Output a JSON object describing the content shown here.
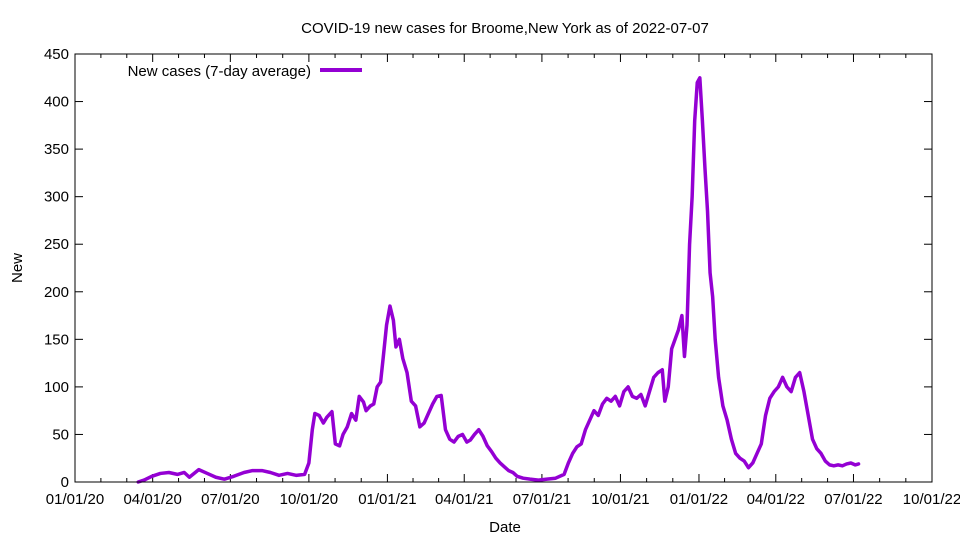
{
  "chart_data": {
    "type": "line",
    "title": "COVID-19 new cases for Broome,New York as of 2022-07-07",
    "xlabel": "Date",
    "ylabel": "New",
    "ylim": [
      0,
      450
    ],
    "yticks": [
      0,
      50,
      100,
      150,
      200,
      250,
      300,
      350,
      400,
      450
    ],
    "xlim": [
      "2020-01-01",
      "2022-10-01"
    ],
    "xticks": [
      {
        "date": "2020-01-01",
        "label": "01/01/20"
      },
      {
        "date": "2020-04-01",
        "label": "04/01/20"
      },
      {
        "date": "2020-07-01",
        "label": "07/01/20"
      },
      {
        "date": "2020-10-01",
        "label": "10/01/20"
      },
      {
        "date": "2021-01-01",
        "label": "01/01/21"
      },
      {
        "date": "2021-04-01",
        "label": "04/01/21"
      },
      {
        "date": "2021-07-01",
        "label": "07/01/21"
      },
      {
        "date": "2021-10-01",
        "label": "10/01/21"
      },
      {
        "date": "2022-01-01",
        "label": "01/01/22"
      },
      {
        "date": "2022-04-01",
        "label": "04/01/22"
      },
      {
        "date": "2022-07-01",
        "label": "07/01/22"
      },
      {
        "date": "2022-10-01",
        "label": "10/01/22"
      }
    ],
    "legend_position": "top-left",
    "grid": false,
    "series": [
      {
        "name": "New cases (7-day average)",
        "color": "#9400d3",
        "points": [
          [
            "2020-03-15",
            0
          ],
          [
            "2020-03-22",
            2
          ],
          [
            "2020-03-31",
            6
          ],
          [
            "2020-04-10",
            9
          ],
          [
            "2020-04-20",
            10
          ],
          [
            "2020-04-30",
            8
          ],
          [
            "2020-05-08",
            10
          ],
          [
            "2020-05-14",
            5
          ],
          [
            "2020-05-25",
            13
          ],
          [
            "2020-06-04",
            9
          ],
          [
            "2020-06-14",
            5
          ],
          [
            "2020-06-24",
            3
          ],
          [
            "2020-07-05",
            6
          ],
          [
            "2020-07-17",
            10
          ],
          [
            "2020-07-27",
            12
          ],
          [
            "2020-08-07",
            12
          ],
          [
            "2020-08-17",
            10
          ],
          [
            "2020-08-27",
            7
          ],
          [
            "2020-09-06",
            9
          ],
          [
            "2020-09-16",
            7
          ],
          [
            "2020-09-26",
            8
          ],
          [
            "2020-10-01",
            20
          ],
          [
            "2020-10-05",
            55
          ],
          [
            "2020-10-08",
            72
          ],
          [
            "2020-10-13",
            70
          ],
          [
            "2020-10-18",
            62
          ],
          [
            "2020-10-22",
            68
          ],
          [
            "2020-10-28",
            74
          ],
          [
            "2020-11-01",
            40
          ],
          [
            "2020-11-06",
            38
          ],
          [
            "2020-11-10",
            50
          ],
          [
            "2020-11-15",
            58
          ],
          [
            "2020-11-20",
            72
          ],
          [
            "2020-11-25",
            65
          ],
          [
            "2020-11-29",
            90
          ],
          [
            "2020-12-04",
            84
          ],
          [
            "2020-12-07",
            75
          ],
          [
            "2020-12-12",
            80
          ],
          [
            "2020-12-16",
            82
          ],
          [
            "2020-12-20",
            100
          ],
          [
            "2020-12-24",
            105
          ],
          [
            "2020-12-27",
            130
          ],
          [
            "2020-12-31",
            165
          ],
          [
            "2021-01-04",
            185
          ],
          [
            "2021-01-08",
            170
          ],
          [
            "2021-01-11",
            142
          ],
          [
            "2021-01-15",
            150
          ],
          [
            "2021-01-19",
            130
          ],
          [
            "2021-01-24",
            115
          ],
          [
            "2021-01-29",
            85
          ],
          [
            "2021-02-03",
            80
          ],
          [
            "2021-02-08",
            58
          ],
          [
            "2021-02-13",
            62
          ],
          [
            "2021-02-18",
            72
          ],
          [
            "2021-02-23",
            82
          ],
          [
            "2021-02-28",
            90
          ],
          [
            "2021-03-05",
            91
          ],
          [
            "2021-03-10",
            55
          ],
          [
            "2021-03-15",
            45
          ],
          [
            "2021-03-20",
            42
          ],
          [
            "2021-03-25",
            48
          ],
          [
            "2021-03-30",
            50
          ],
          [
            "2021-04-04",
            42
          ],
          [
            "2021-04-08",
            44
          ],
          [
            "2021-04-13",
            50
          ],
          [
            "2021-04-18",
            55
          ],
          [
            "2021-04-23",
            48
          ],
          [
            "2021-04-28",
            38
          ],
          [
            "2021-05-03",
            32
          ],
          [
            "2021-05-08",
            25
          ],
          [
            "2021-05-13",
            20
          ],
          [
            "2021-05-18",
            16
          ],
          [
            "2021-05-23",
            12
          ],
          [
            "2021-05-28",
            10
          ],
          [
            "2021-06-02",
            6
          ],
          [
            "2021-06-09",
            4
          ],
          [
            "2021-06-17",
            3
          ],
          [
            "2021-06-27",
            2
          ],
          [
            "2021-07-07",
            3
          ],
          [
            "2021-07-17",
            4
          ],
          [
            "2021-07-27",
            8
          ],
          [
            "2021-08-01",
            20
          ],
          [
            "2021-08-06",
            30
          ],
          [
            "2021-08-11",
            37
          ],
          [
            "2021-08-16",
            40
          ],
          [
            "2021-08-21",
            55
          ],
          [
            "2021-08-26",
            65
          ],
          [
            "2021-08-31",
            75
          ],
          [
            "2021-09-05",
            70
          ],
          [
            "2021-09-10",
            82
          ],
          [
            "2021-09-15",
            88
          ],
          [
            "2021-09-20",
            85
          ],
          [
            "2021-09-25",
            90
          ],
          [
            "2021-09-30",
            80
          ],
          [
            "2021-10-05",
            95
          ],
          [
            "2021-10-10",
            100
          ],
          [
            "2021-10-15",
            90
          ],
          [
            "2021-10-20",
            88
          ],
          [
            "2021-10-25",
            92
          ],
          [
            "2021-10-30",
            80
          ],
          [
            "2021-11-04",
            95
          ],
          [
            "2021-11-09",
            110
          ],
          [
            "2021-11-14",
            115
          ],
          [
            "2021-11-19",
            118
          ],
          [
            "2021-11-22",
            85
          ],
          [
            "2021-11-26",
            100
          ],
          [
            "2021-11-30",
            140
          ],
          [
            "2021-12-04",
            150
          ],
          [
            "2021-12-08",
            160
          ],
          [
            "2021-12-12",
            175
          ],
          [
            "2021-12-15",
            132
          ],
          [
            "2021-12-18",
            165
          ],
          [
            "2021-12-21",
            250
          ],
          [
            "2021-12-24",
            300
          ],
          [
            "2021-12-27",
            380
          ],
          [
            "2021-12-30",
            420
          ],
          [
            "2022-01-02",
            425
          ],
          [
            "2022-01-05",
            380
          ],
          [
            "2022-01-08",
            330
          ],
          [
            "2022-01-11",
            285
          ],
          [
            "2022-01-14",
            220
          ],
          [
            "2022-01-17",
            195
          ],
          [
            "2022-01-20",
            150
          ],
          [
            "2022-01-24",
            110
          ],
          [
            "2022-01-29",
            80
          ],
          [
            "2022-02-03",
            65
          ],
          [
            "2022-02-08",
            45
          ],
          [
            "2022-02-13",
            30
          ],
          [
            "2022-02-18",
            25
          ],
          [
            "2022-02-23",
            22
          ],
          [
            "2022-02-28",
            15
          ],
          [
            "2022-03-05",
            20
          ],
          [
            "2022-03-10",
            30
          ],
          [
            "2022-03-15",
            40
          ],
          [
            "2022-03-20",
            70
          ],
          [
            "2022-03-25",
            88
          ],
          [
            "2022-03-30",
            95
          ],
          [
            "2022-04-04",
            100
          ],
          [
            "2022-04-09",
            110
          ],
          [
            "2022-04-14",
            100
          ],
          [
            "2022-04-19",
            95
          ],
          [
            "2022-04-24",
            110
          ],
          [
            "2022-04-29",
            115
          ],
          [
            "2022-05-04",
            95
          ],
          [
            "2022-05-09",
            70
          ],
          [
            "2022-05-14",
            45
          ],
          [
            "2022-05-19",
            35
          ],
          [
            "2022-05-24",
            30
          ],
          [
            "2022-05-29",
            22
          ],
          [
            "2022-06-03",
            18
          ],
          [
            "2022-06-08",
            17
          ],
          [
            "2022-06-13",
            18
          ],
          [
            "2022-06-18",
            17
          ],
          [
            "2022-06-23",
            19
          ],
          [
            "2022-06-28",
            20
          ],
          [
            "2022-07-03",
            18
          ],
          [
            "2022-07-07",
            19
          ]
        ]
      }
    ]
  }
}
